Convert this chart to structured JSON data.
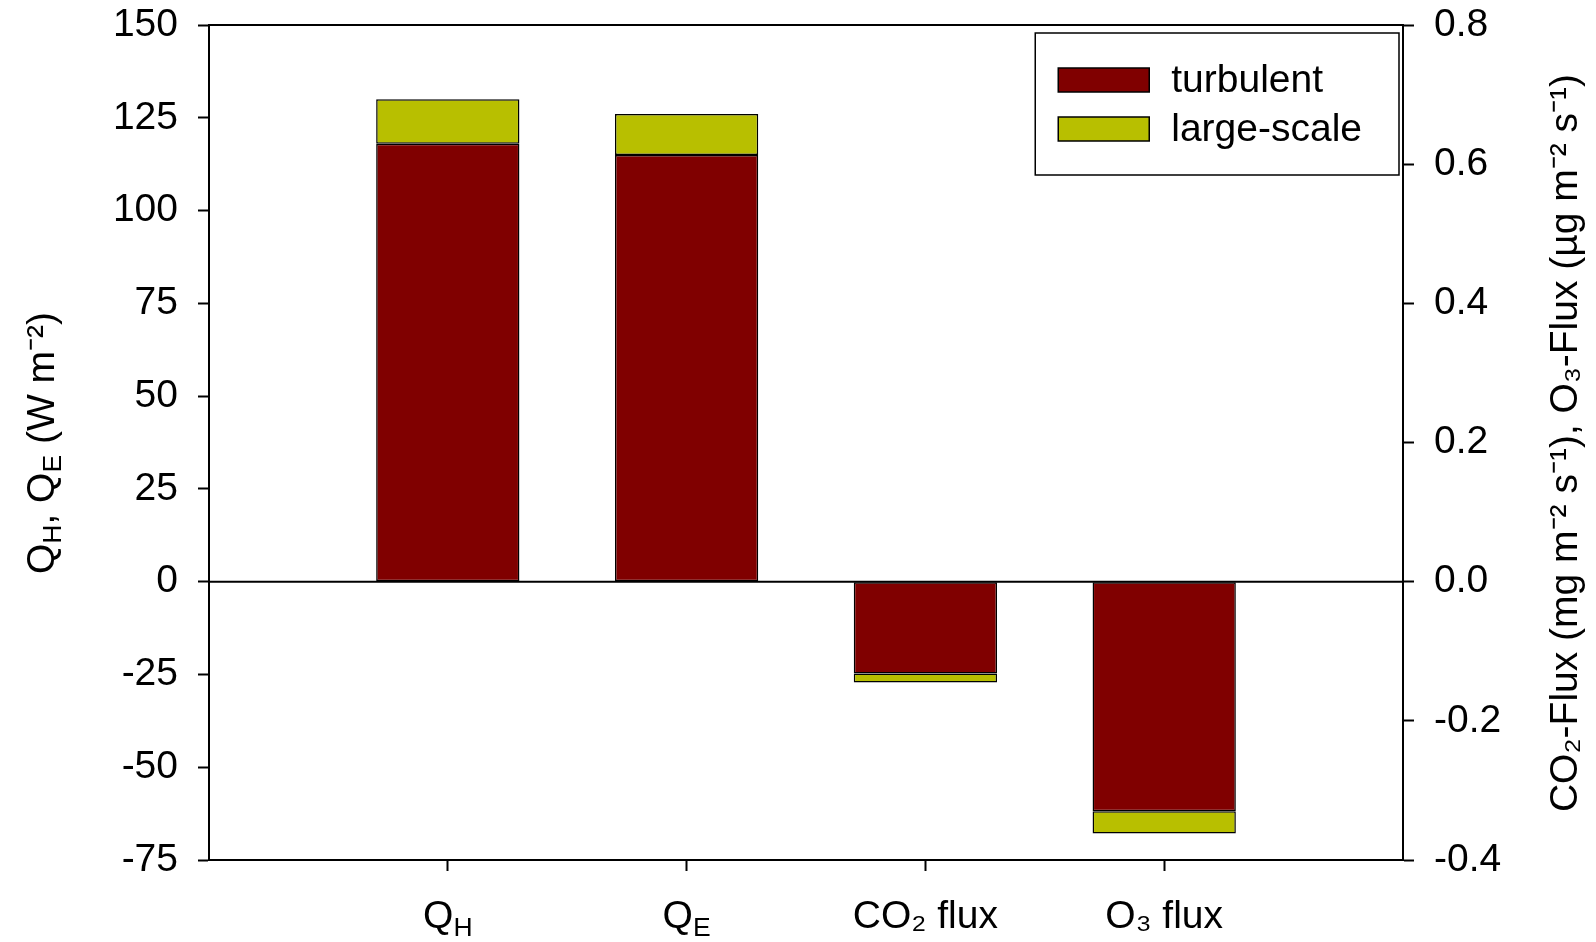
{
  "chart_data": {
    "type": "bar",
    "categories": [
      "Q$_{H}$",
      "Q$_{E}$",
      "CO₂ flux",
      "O₃ flux"
    ],
    "series": [
      {
        "name": "turbulent",
        "color": "#800000",
        "values": [
          118,
          115,
          null,
          null
        ]
      },
      {
        "name": "large-scale",
        "color": "#b8bf00",
        "values": [
          12,
          11,
          null,
          null
        ]
      },
      {
        "color": "#800000",
        "axis": "y2",
        "values": [
          null,
          null,
          -0.132,
          -0.33
        ]
      },
      {
        "color": "#b8bf00",
        "axis": "y2",
        "values": [
          null,
          null,
          -0.013,
          -0.032
        ]
      }
    ],
    "stacked": true,
    "ylabel": "Q$_{H}$, Q$_{E}$ (W m⁻²)",
    "y2label": "CO₂-Flux (mg m⁻² s⁻¹), O₃-Flux (µg m⁻² s⁻¹)",
    "ylim": [
      -75,
      150
    ],
    "yticks": [
      -75,
      -50,
      -25,
      0,
      25,
      50,
      75,
      100,
      125,
      150
    ],
    "y2lim": [
      -0.4,
      0.8
    ],
    "y2ticks": [
      -0.4,
      -0.2,
      {
        "value": 0,
        "label": "0.0"
      },
      0.2,
      0.4,
      0.6,
      0.8
    ],
    "ref_lines": [
      {
        "axis": "y",
        "value": 0
      }
    ],
    "legend": "top right"
  }
}
